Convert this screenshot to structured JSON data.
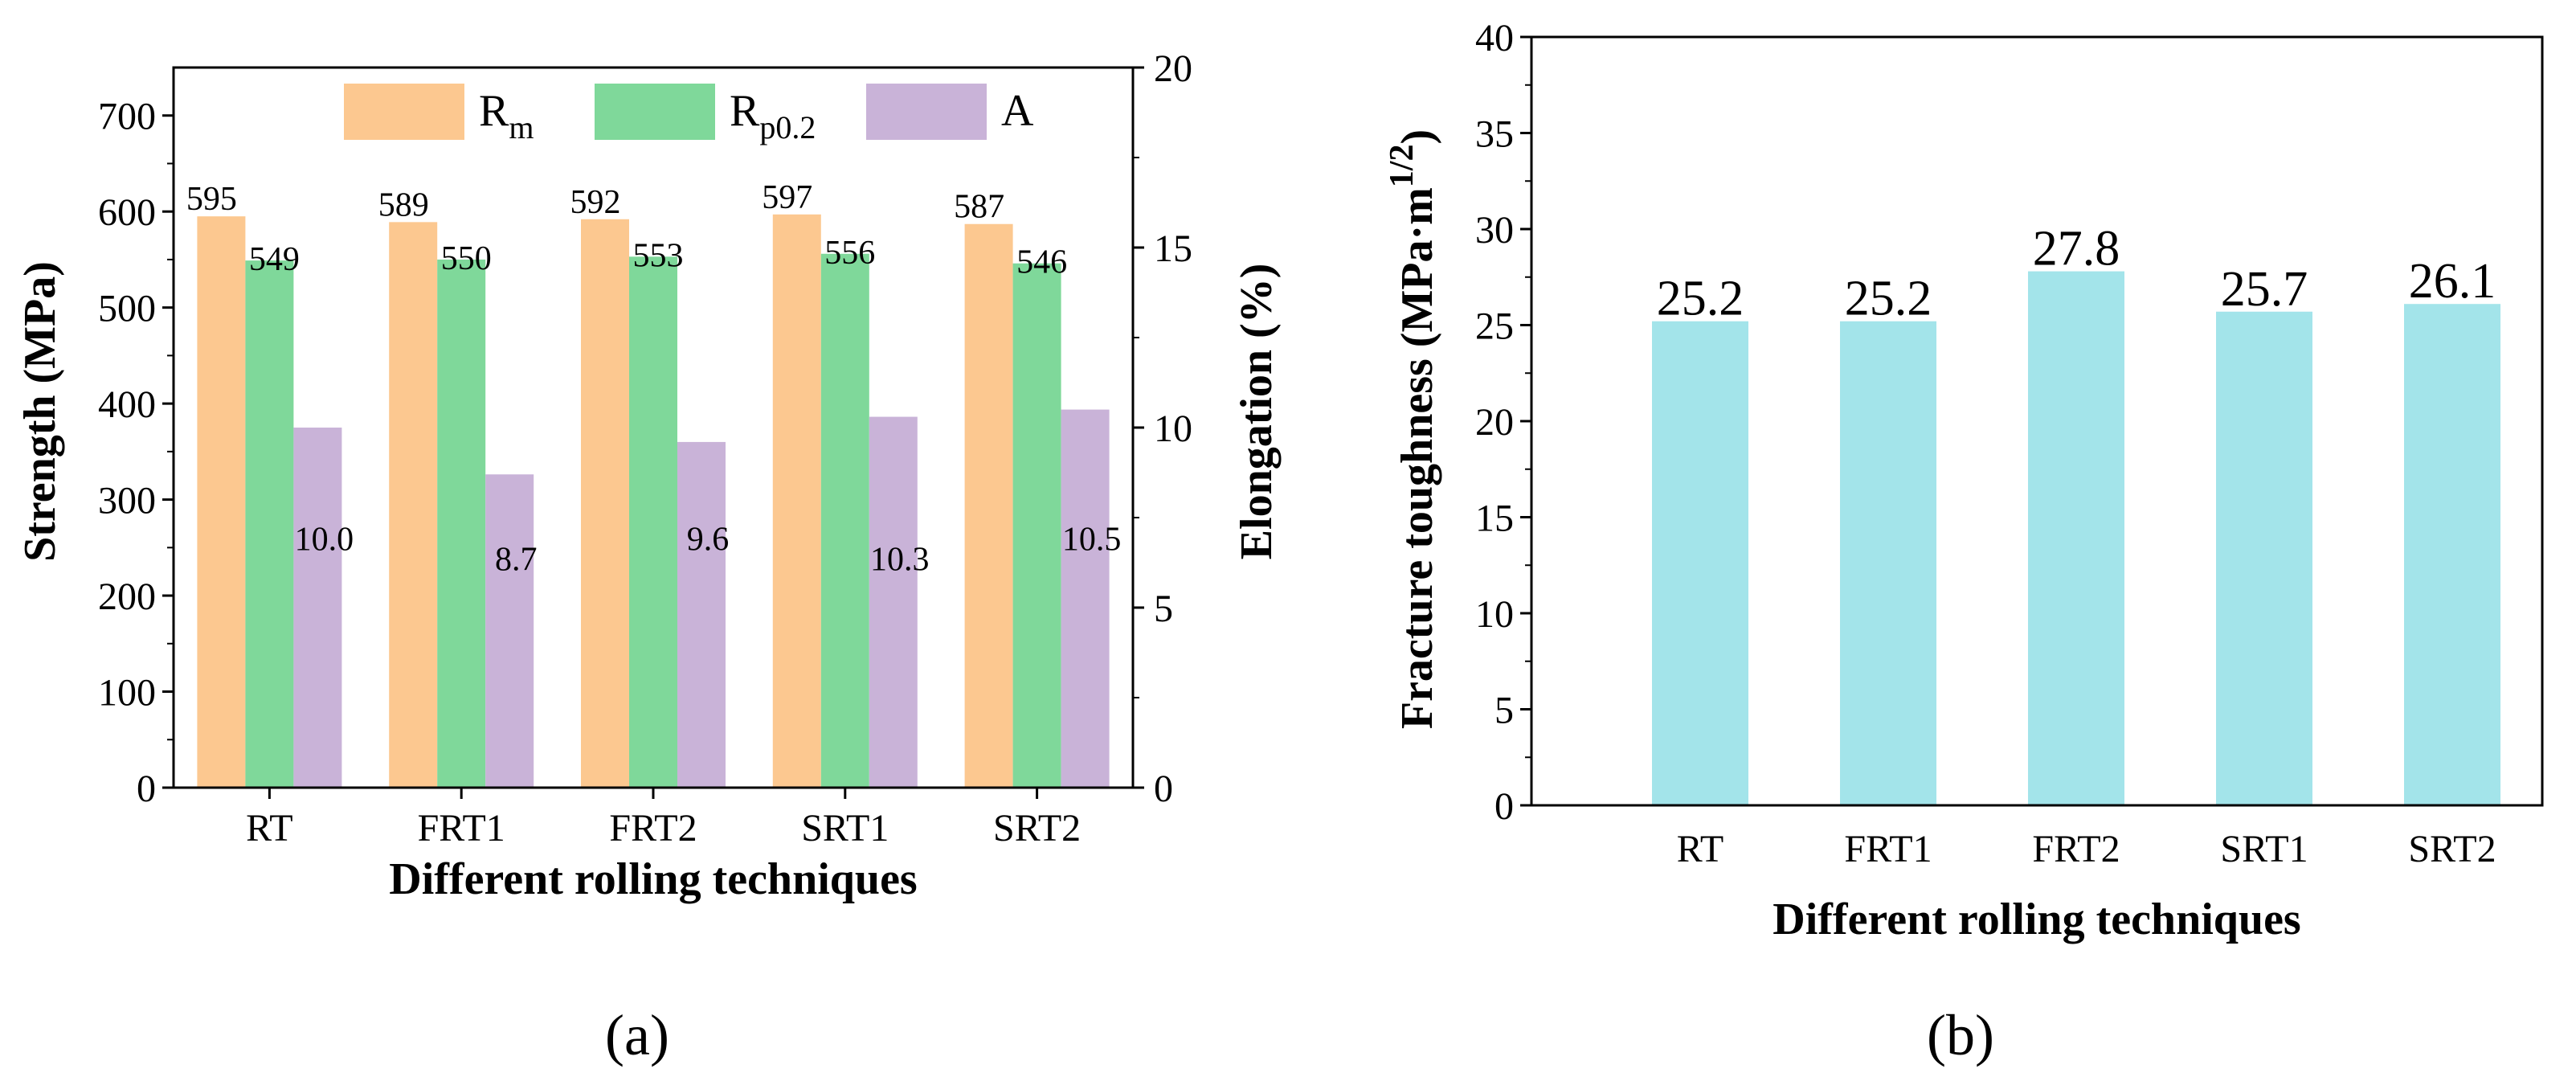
{
  "chart_data": [
    {
      "type": "bar",
      "panel_label": "(a)",
      "categories": [
        "RT",
        "FRT1",
        "FRT2",
        "SRT1",
        "SRT2"
      ],
      "xlabel": "Different rolling techniques",
      "ylabel": "Strength (MPa)",
      "ylabel_right": "Elongation (%)",
      "ylim": [
        0,
        750
      ],
      "yticks": [
        0,
        100,
        200,
        300,
        400,
        500,
        600,
        700
      ],
      "ylim_right": [
        0,
        20
      ],
      "yticks_right": [
        0,
        5,
        10,
        15,
        20
      ],
      "legend_position": "top",
      "series": [
        {
          "name": "Rm",
          "name_main": "R",
          "name_sub": "m",
          "axis": "left",
          "color": "#FCC890",
          "values": [
            595,
            589,
            592,
            597,
            587
          ]
        },
        {
          "name": "Rp0.2",
          "name_main": "R",
          "name_sub": "p0.2",
          "axis": "left",
          "color": "#7FD89A",
          "values": [
            549,
            550,
            553,
            556,
            546
          ]
        },
        {
          "name": "A",
          "name_main": "A",
          "name_sub": "",
          "axis": "right",
          "color": "#C9B3D8",
          "values": [
            10.0,
            8.7,
            9.6,
            10.3,
            10.5
          ]
        }
      ],
      "value_labels": {
        "Rm": [
          "595",
          "589",
          "592",
          "597",
          "587"
        ],
        "Rp0.2": [
          "549",
          "550",
          "553",
          "556",
          "546"
        ],
        "A": [
          "10.0",
          "8.7",
          "9.6",
          "10.3",
          "10.5"
        ]
      }
    },
    {
      "type": "bar",
      "panel_label": "(b)",
      "categories": [
        "RT",
        "FRT1",
        "FRT2",
        "SRT1",
        "SRT2"
      ],
      "xlabel": "Different rolling techniques",
      "ylabel": "Fracture toughness (MPa·m",
      "ylabel_sup": "1/2",
      "ylabel_close": ")",
      "ylim": [
        0,
        40
      ],
      "yticks": [
        0,
        5,
        10,
        15,
        20,
        25,
        30,
        35,
        40
      ],
      "series": [
        {
          "name": "Fracture toughness",
          "color": "#A3E4EA",
          "values": [
            25.2,
            25.2,
            27.8,
            25.7,
            26.1
          ]
        }
      ],
      "value_labels": [
        "25.2",
        "25.2",
        "27.8",
        "25.7",
        "26.1"
      ]
    }
  ]
}
